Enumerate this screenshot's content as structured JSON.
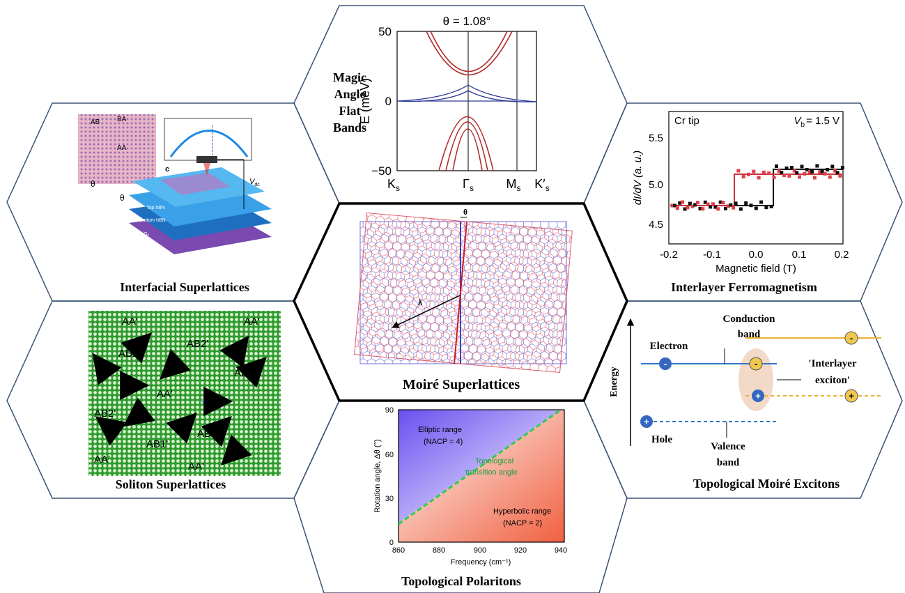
{
  "panels": {
    "flat_bands": {
      "title_lines": [
        "Magic",
        "Angle",
        "Flat",
        "Bands"
      ],
      "plot_title": "θ = 1.08°",
      "y_label": "E (meV)",
      "yticks": [
        "50",
        "0",
        "−50"
      ],
      "xticks": [
        {
          "main": "K",
          "sub": "s"
        },
        {
          "main": "Γ",
          "sub": "s"
        },
        {
          "main": "M",
          "sub": "s"
        },
        {
          "main": "K′",
          "sub": "s"
        }
      ]
    },
    "interfacial": {
      "title": "Interfacial Superlattices",
      "labels": [
        "AB",
        "BA",
        "AA",
        "c",
        "θ",
        "θ",
        "Top hBN",
        "Bottom hBN",
        "SiO₂",
        "Si"
      ],
      "bias": {
        "main": "V",
        "sub": "dc"
      }
    },
    "ferromagnetism": {
      "title": "Interlayer Ferromagnetism",
      "tip": "Cr tip",
      "bias": {
        "main": "V",
        "sub": "b",
        "rest": "= 1.5 V"
      },
      "y_label": "dI/dV (a. u.)",
      "yticks": [
        "5.5",
        "5.0",
        "4.5"
      ],
      "x_label": "Magnetic field (T)",
      "xticks": [
        "-0.2",
        "-0.1",
        "0.0",
        "0.1",
        "0.2"
      ]
    },
    "moire": {
      "title": "Moiré Superlattices",
      "angle": "θ",
      "period": "λ"
    },
    "soliton": {
      "title": "Soliton Superlattices",
      "labels": [
        "AA'",
        "AA'",
        "AB2'",
        "AB1'",
        "AB1'",
        "AA'",
        "AB2'",
        "AB2'",
        "AB1'",
        "AA'",
        "AA'"
      ]
    },
    "excitons": {
      "title": "Topological Moiré Excitons",
      "conduction": [
        "Conduction",
        "band"
      ],
      "electron": "Electron",
      "exciton": [
        "'Interlayer",
        "exciton'"
      ],
      "energy": "Energy",
      "hole": "Hole",
      "valence": [
        "Valence",
        "band"
      ],
      "minus": "-",
      "plus": "+"
    },
    "polaritons": {
      "title": "Topological Polaritons",
      "y_label": "Rotation angle, Δθ (°)",
      "x_label": "Frequency (cm⁻¹)",
      "yticks": [
        "0",
        "30",
        "60",
        "90"
      ],
      "xticks": [
        "860",
        "880",
        "900",
        "920",
        "940"
      ],
      "elliptic": "Elliptic range",
      "elliptic_n": "(NACP = 4)",
      "transition": [
        "Topological",
        "transition angle"
      ],
      "hyperbolic": "Hyperbolic range",
      "hyperbolic_n": "(NACP = 2)"
    }
  }
}
